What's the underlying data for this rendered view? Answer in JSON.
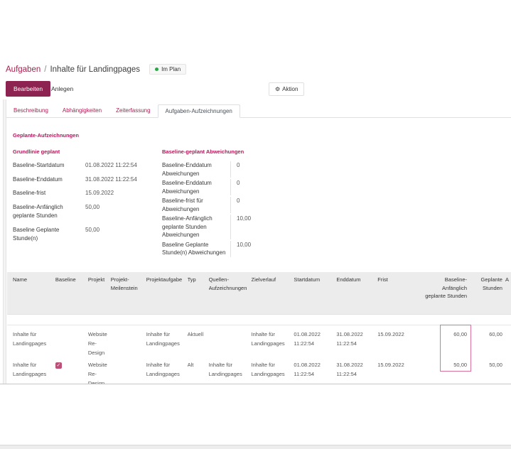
{
  "colors": {
    "primary": "#8d2350",
    "accent_text": "#ac1e53",
    "highlight_border": "#d9729c",
    "status_green": "#28a745",
    "table_header_bg": "#ececec"
  },
  "breadcrumb": {
    "parent": "Aufgaben",
    "separator": "/",
    "current": "Inhalte für Landingpages"
  },
  "status_badge": {
    "label": "Im Plan"
  },
  "toolbar": {
    "edit": "Bearbeiten",
    "create": "Anlegen",
    "action": "Aktion"
  },
  "tabs": [
    {
      "label": "Beschreibung",
      "active": false
    },
    {
      "label": "Abhängigkeiten",
      "active": false
    },
    {
      "label": "Zeiterfassung",
      "active": false
    },
    {
      "label": "Aufgaben-Aufzeichnungen",
      "active": true
    }
  ],
  "section_title": "Geplante-Aufzeichnungen",
  "groups": [
    {
      "title": "Grundlinie geplant",
      "divider": false,
      "fields": [
        {
          "label": "Baseline-Startdatum",
          "value": "01.08.2022 11:22:54"
        },
        {
          "label": "Baseline-Enddatum",
          "value": "31.08.2022 11:22:54"
        },
        {
          "label": "Baseline-frist",
          "value": "15.09.2022"
        },
        {
          "label": "Baseline-Anfänglich geplante Stunden",
          "value": "50,00"
        },
        {
          "label": "Baseline Geplante Stunde(n)",
          "value": "50,00"
        }
      ]
    },
    {
      "title": "Baseline-geplant Abweichungen",
      "divider": true,
      "fields": [
        {
          "label": "Baseline-Enddatum Abweichungen",
          "value": "0"
        },
        {
          "label": "Baseline-Enddatum Abweichungen",
          "value": "0"
        },
        {
          "label": "Baseline-frist für Abweichungen",
          "value": "0"
        },
        {
          "label": "Baseline-Anfänglich geplante Stunden Abweichungen",
          "value": "10,00"
        },
        {
          "label": "Baseline Geplante Stunde(n) Abweichungen",
          "value": "10,00"
        }
      ]
    }
  ],
  "table": {
    "columns": [
      "Name",
      "Baseline",
      "Projekt",
      "Projekt-Meilenstein",
      "Projektaufgabe",
      "Typ",
      "Quellen-Aufzeichnungen",
      "Zielverlauf",
      "Startdatum",
      "Enddatum",
      "Frist",
      "Baseline-Anfänglich geplante Stunden",
      "Geplante Stunden",
      "A"
    ],
    "rows": [
      {
        "baseline_checked": false,
        "cells": [
          "Inhalte für Landingpages",
          "",
          "Website Re-Design",
          "",
          "Inhalte für Landingpages",
          "Aktuell",
          "",
          "Inhalte für Landingpages",
          "01.08.2022 11:22:54",
          "31.08.2022 11:22:54",
          "15.09.2022",
          "60,00",
          "60,00",
          ""
        ]
      },
      {
        "baseline_checked": true,
        "cells": [
          "Inhalte für Landingpages",
          "",
          "Website Re-Design",
          "",
          "Inhalte für Landingpages",
          "Alt",
          "Inhalte für Landingpages",
          "Inhalte für Landingpages",
          "01.08.2022 11:22:54",
          "31.08.2022 11:22:54",
          "15.09.2022",
          "50,00",
          "50,00",
          ""
        ]
      }
    ]
  }
}
